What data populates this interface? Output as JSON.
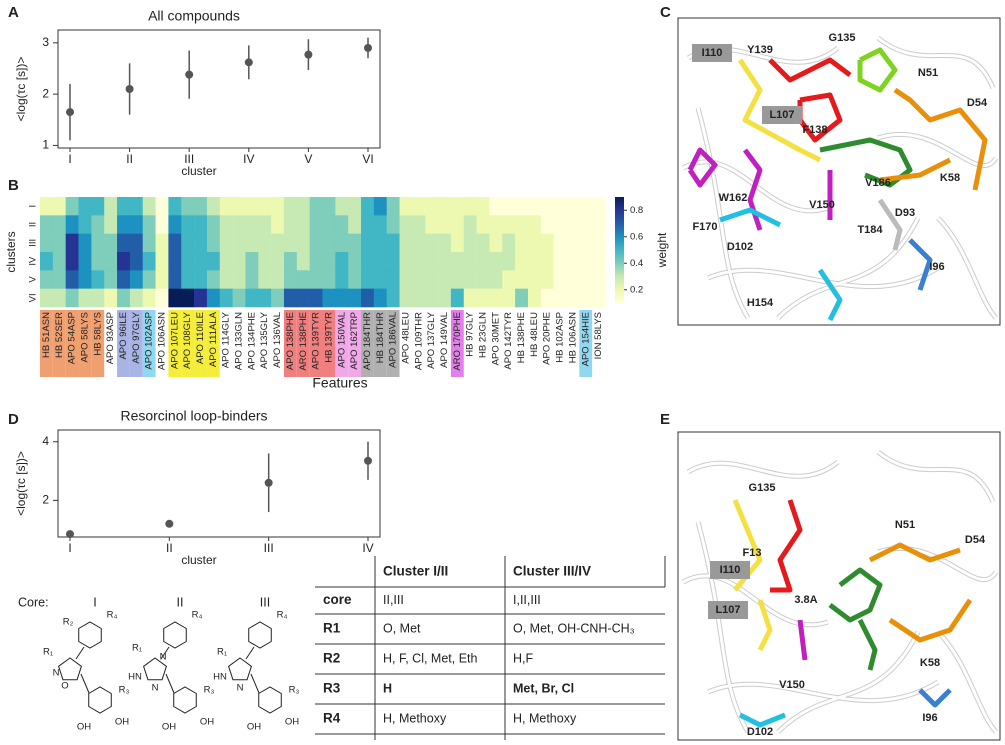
{
  "panels": [
    "A",
    "B",
    "C",
    "D",
    "E"
  ],
  "chart_data": [
    {
      "type": "errorbar",
      "title": "All compounds",
      "ylabel": "<log(τc [s])>",
      "xlabel": "cluster",
      "categories": [
        "I",
        "II",
        "III",
        "IV",
        "V",
        "VI"
      ],
      "values": [
        1.65,
        2.1,
        2.38,
        2.62,
        2.77,
        2.9
      ],
      "errors": [
        0.55,
        0.5,
        0.47,
        0.33,
        0.3,
        0.2
      ],
      "ylim": [
        0.95,
        3.25
      ],
      "yticks": [
        1,
        2,
        3
      ],
      "color": "#555555"
    },
    {
      "type": "heatmap",
      "ylabel": "clusters",
      "xlabel": "Features",
      "colorbar_label": "weight",
      "colormap": "YlGnBu",
      "rows": [
        "I",
        "II",
        "III",
        "IV",
        "V",
        "VI"
      ],
      "columns": [
        "HB 51ASN",
        "HB 52SER",
        "APO 54ASP",
        "APO 58LYS",
        "HB 58LYS",
        "APO 93ASP",
        "APO 96ILE",
        "APO 97GLY",
        "APO 102ASP",
        "APO 106ASN",
        "APO 107LEU",
        "APO 108GLY",
        "APO 110ILE",
        "APO 111ALA",
        "APO 114GLY",
        "APO 133GLN",
        "APO 134PHE",
        "APO 135GLY",
        "APO 136VAL",
        "APO 138PHE",
        "ARO 138PHE",
        "APO 139TYR",
        "HB 139TYR",
        "APO 150VAL",
        "APO 162TRP",
        "APO 184THR",
        "HB 184THR",
        "APO 186VAL",
        "APO 48LEU",
        "APO 109THR",
        "APO 137GLY",
        "APO 149VAL",
        "ARO 170PHE",
        "HB 97GLY",
        "HB 23GLN",
        "APO 30MET",
        "APO 142TYR",
        "HB 138PHE",
        "HB 48LEU",
        "APO 20PHE",
        "HB 102ASP",
        "HB 106ASN",
        "APO 154HIE",
        "ION 58LYS"
      ],
      "column_colors": [
        "#f0a070",
        "#f0a070",
        "#f0a070",
        "#f0a070",
        "#f0a070",
        null,
        "#a8b4e4",
        "#a8b4e4",
        "#90d8f0",
        null,
        "#f4ee3a",
        "#f4ee3a",
        "#f4ee3a",
        "#f4ee3a",
        null,
        null,
        null,
        null,
        null,
        "#f08080",
        "#f08080",
        "#f08080",
        "#f08080",
        "#f0a8e8",
        "#f0a8e8",
        "#b0b0b0",
        "#b0b0b0",
        "#b0b0b0",
        null,
        null,
        null,
        null,
        "#e080e8",
        null,
        null,
        null,
        null,
        null,
        null,
        null,
        null,
        null,
        "#90d8f0",
        null
      ],
      "values": [
        [
          0.2,
          0.2,
          0.4,
          0.5,
          0.5,
          0.3,
          0.5,
          0.5,
          0.3,
          0.1,
          0.5,
          0.4,
          0.4,
          0.3,
          0.2,
          0.2,
          0.2,
          0.2,
          0.2,
          0.3,
          0.3,
          0.4,
          0.4,
          0.3,
          0.3,
          0.5,
          0.6,
          0.4,
          0.2,
          0.2,
          0.2,
          0.2,
          0.2,
          0.2,
          0.2,
          0.1,
          0.1,
          0.1,
          0.1,
          0.1,
          0.1,
          0.1,
          0.1,
          0.1
        ],
        [
          0.4,
          0.4,
          0.6,
          0.5,
          0.4,
          0.3,
          0.6,
          0.6,
          0.4,
          0.1,
          0.6,
          0.5,
          0.5,
          0.4,
          0.3,
          0.3,
          0.3,
          0.3,
          0.2,
          0.3,
          0.3,
          0.4,
          0.4,
          0.4,
          0.3,
          0.5,
          0.5,
          0.4,
          0.3,
          0.3,
          0.2,
          0.2,
          0.2,
          0.3,
          0.2,
          0.2,
          0.2,
          0.2,
          0.2,
          0.1,
          0.1,
          0.1,
          0.1,
          0.1
        ],
        [
          0.4,
          0.4,
          0.8,
          0.6,
          0.4,
          0.4,
          0.7,
          0.7,
          0.4,
          0.2,
          0.7,
          0.5,
          0.5,
          0.4,
          0.3,
          0.3,
          0.3,
          0.3,
          0.3,
          0.3,
          0.3,
          0.4,
          0.4,
          0.4,
          0.4,
          0.5,
          0.5,
          0.5,
          0.3,
          0.3,
          0.3,
          0.3,
          0.2,
          0.3,
          0.3,
          0.2,
          0.3,
          0.2,
          0.2,
          0.2,
          0.1,
          0.1,
          0.1,
          0.1
        ],
        [
          0.5,
          0.4,
          0.8,
          0.6,
          0.4,
          0.4,
          0.8,
          0.7,
          0.5,
          0.2,
          0.7,
          0.5,
          0.5,
          0.5,
          0.3,
          0.3,
          0.4,
          0.3,
          0.3,
          0.4,
          0.3,
          0.4,
          0.4,
          0.5,
          0.4,
          0.5,
          0.5,
          0.5,
          0.3,
          0.3,
          0.3,
          0.3,
          0.3,
          0.3,
          0.3,
          0.3,
          0.3,
          0.2,
          0.2,
          0.2,
          0.1,
          0.1,
          0.1,
          0.1
        ],
        [
          0.4,
          0.4,
          0.7,
          0.6,
          0.5,
          0.4,
          0.7,
          0.6,
          0.4,
          0.2,
          0.7,
          0.5,
          0.5,
          0.4,
          0.3,
          0.3,
          0.4,
          0.3,
          0.3,
          0.4,
          0.4,
          0.4,
          0.4,
          0.5,
          0.4,
          0.5,
          0.5,
          0.5,
          0.3,
          0.3,
          0.3,
          0.3,
          0.3,
          0.3,
          0.3,
          0.3,
          0.2,
          0.2,
          0.2,
          0.2,
          0.1,
          0.1,
          0.1,
          0.1
        ],
        [
          0.3,
          0.3,
          0.4,
          0.3,
          0.3,
          0.2,
          0.4,
          0.3,
          0.2,
          0.1,
          0.9,
          0.9,
          0.8,
          0.6,
          0.5,
          0.4,
          0.5,
          0.5,
          0.4,
          0.7,
          0.7,
          0.7,
          0.6,
          0.6,
          0.6,
          0.7,
          0.6,
          0.5,
          0.3,
          0.3,
          0.3,
          0.3,
          0.5,
          0.2,
          0.2,
          0.2,
          0.2,
          0.4,
          0.2,
          0.1,
          0.1,
          0.1,
          0.1,
          0.1
        ]
      ],
      "zlim": [
        0.1,
        0.9
      ],
      "zticks": [
        0.2,
        0.4,
        0.6,
        0.8
      ]
    },
    {
      "type": "errorbar",
      "title": "Resorcinol loop-binders",
      "ylabel": "<log(τc [s])>",
      "xlabel": "cluster",
      "categories": [
        "I",
        "II",
        "III",
        "IV"
      ],
      "values": [
        0.85,
        1.2,
        2.6,
        3.35
      ],
      "errors": [
        0.1,
        0.05,
        1.0,
        0.65
      ],
      "ylim": [
        0.75,
        4.4
      ],
      "yticks": [
        2,
        4
      ],
      "color": "#555555"
    }
  ],
  "molecules": [
    {
      "labels": [
        {
          "text": "I110",
          "color": "#f4e040",
          "boxed": true
        },
        {
          "text": "Y139",
          "color": "#e41a1c"
        },
        {
          "text": "G135",
          "color": "#e41a1c"
        },
        {
          "text": "N51",
          "color": "#e8900a"
        },
        {
          "text": "D54",
          "color": "#e8900a"
        },
        {
          "text": "L107",
          "color": "#f4e040",
          "boxed": true
        },
        {
          "text": "F138",
          "color": "#e41a1c"
        },
        {
          "text": "W162",
          "color": "#a020a8"
        },
        {
          "text": "K58",
          "color": "#e8900a"
        },
        {
          "text": "V186",
          "color": "#777777"
        },
        {
          "text": "V150",
          "color": "#7030a0"
        },
        {
          "text": "D93",
          "color": "#111111"
        },
        {
          "text": "F170",
          "color": "#7030a0"
        },
        {
          "text": "D102",
          "color": "#20b0d0"
        },
        {
          "text": "T184",
          "color": "#777777"
        },
        {
          "text": "I96",
          "color": "#3a80d0"
        },
        {
          "text": "H154",
          "color": "#20b0d0"
        }
      ]
    },
    {
      "labels": [
        {
          "text": "G135",
          "color": "#e41a1c"
        },
        {
          "text": "N51",
          "color": "#e8900a"
        },
        {
          "text": "D54",
          "color": "#e8900a"
        },
        {
          "text": "F13",
          "color": "#e41a1c"
        },
        {
          "text": "I110",
          "color": "#f4e040",
          "boxed": true
        },
        {
          "text": "L107",
          "color": "#f4e040",
          "boxed": true
        },
        {
          "text": "3.8A",
          "color": "#111111"
        },
        {
          "text": "K58",
          "color": "#e8900a"
        },
        {
          "text": "V150",
          "color": "#7030a0"
        },
        {
          "text": "I96",
          "color": "#3a80d0"
        },
        {
          "text": "D102",
          "color": "#20b0d0"
        }
      ]
    }
  ],
  "structures": {
    "label": "Core:",
    "cores": [
      {
        "name": "I",
        "labels": [
          "R₂",
          "R₄",
          "R₁",
          "N",
          "O",
          "R₃",
          "OH",
          "OH"
        ]
      },
      {
        "name": "II",
        "labels": [
          "R₄",
          "R₁",
          "N",
          "HN",
          "N",
          "R₃",
          "OH",
          "OH"
        ]
      },
      {
        "name": "III",
        "labels": [
          "R₄",
          "R₁",
          "HN",
          "N",
          "R₃",
          "OH",
          "OH"
        ]
      }
    ]
  },
  "table": {
    "header": [
      "Cluster I/II",
      "Cluster III/IV"
    ],
    "rows": [
      [
        "core",
        "II,III",
        "I,II,III"
      ],
      [
        "R1",
        "O, Met",
        "O, Met, OH-CNH-CH₃"
      ],
      [
        "R2",
        "H, F, Cl, Met, Eth",
        "H,F"
      ],
      [
        "R3",
        "H",
        "Met, Br, Cl"
      ],
      [
        "R4",
        "H, Methoxy",
        "H, Methoxy"
      ]
    ]
  }
}
